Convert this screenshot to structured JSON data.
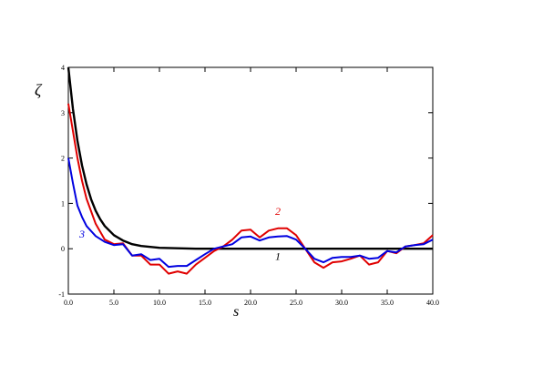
{
  "chart_data": {
    "type": "line",
    "xlabel": "s",
    "ylabel": "ζ",
    "xlim": [
      0,
      40
    ],
    "ylim": [
      -1,
      4
    ],
    "x_ticks": [
      "0.0",
      "5.0",
      "10.0",
      "15.0",
      "20.0",
      "25.0",
      "30.0",
      "35.0",
      "40.0"
    ],
    "y_ticks": [
      "-1",
      "0",
      "1",
      "2",
      "3",
      "4"
    ],
    "grid": false,
    "legend": "none",
    "series": [
      {
        "name": "1",
        "color": "#000000",
        "x": [
          0,
          0.5,
          1,
          1.5,
          2,
          2.5,
          3,
          3.5,
          4,
          5,
          6,
          7,
          8,
          9,
          10,
          12,
          14,
          16,
          18,
          20,
          22,
          24,
          26,
          28,
          30,
          32,
          34,
          36,
          38,
          40
        ],
        "y": [
          4.0,
          3.09,
          2.38,
          1.84,
          1.42,
          1.09,
          0.84,
          0.65,
          0.5,
          0.3,
          0.18,
          0.1,
          0.06,
          0.04,
          0.02,
          0.01,
          0.0,
          0.0,
          0.0,
          0.0,
          0.0,
          0.0,
          0.0,
          0.0,
          0.0,
          0.0,
          0.0,
          0.0,
          0.0,
          0.0
        ]
      },
      {
        "name": "2",
        "color": "#e00000",
        "x": [
          0,
          0.5,
          1,
          1.5,
          2,
          3,
          4,
          5,
          6,
          7,
          8,
          9,
          10,
          11,
          12,
          13,
          14,
          15,
          16,
          17,
          18,
          19,
          20,
          21,
          22,
          23,
          24,
          25,
          26,
          27,
          28,
          29,
          30,
          31,
          32,
          33,
          34,
          35,
          36,
          37,
          38,
          39,
          40
        ],
        "y": [
          3.2,
          2.6,
          2.0,
          1.5,
          1.1,
          0.55,
          0.2,
          0.1,
          0.12,
          -0.15,
          -0.15,
          -0.35,
          -0.35,
          -0.55,
          -0.5,
          -0.55,
          -0.35,
          -0.2,
          -0.05,
          0.05,
          0.2,
          0.4,
          0.42,
          0.25,
          0.4,
          0.45,
          0.45,
          0.3,
          0.0,
          -0.3,
          -0.42,
          -0.3,
          -0.28,
          -0.22,
          -0.15,
          -0.35,
          -0.3,
          -0.05,
          -0.1,
          0.05,
          0.08,
          0.12,
          0.3
        ]
      },
      {
        "name": "3",
        "color": "#0000e0",
        "x": [
          0,
          0.5,
          1,
          1.5,
          2,
          3,
          4,
          5,
          6,
          7,
          8,
          9,
          10,
          11,
          12,
          13,
          14,
          15,
          16,
          17,
          18,
          19,
          20,
          21,
          22,
          23,
          24,
          25,
          26,
          27,
          28,
          29,
          30,
          31,
          32,
          33,
          34,
          35,
          36,
          37,
          38,
          39,
          40
        ],
        "y": [
          2.0,
          1.45,
          0.95,
          0.7,
          0.5,
          0.28,
          0.15,
          0.08,
          0.1,
          -0.15,
          -0.12,
          -0.25,
          -0.22,
          -0.4,
          -0.38,
          -0.38,
          -0.25,
          -0.12,
          0.0,
          0.05,
          0.1,
          0.25,
          0.27,
          0.18,
          0.25,
          0.27,
          0.28,
          0.2,
          0.0,
          -0.22,
          -0.3,
          -0.2,
          -0.18,
          -0.18,
          -0.15,
          -0.22,
          -0.2,
          -0.05,
          -0.08,
          0.05,
          0.08,
          0.1,
          0.2
        ]
      }
    ],
    "annotations": [
      {
        "text": "1",
        "x": 23,
        "y": -0.25,
        "color": "#000000"
      },
      {
        "text": "2",
        "x": 23,
        "y": 0.75,
        "color": "#e00000"
      },
      {
        "text": "3",
        "x": 1.5,
        "y": 0.25,
        "color": "#0000e0"
      }
    ]
  }
}
